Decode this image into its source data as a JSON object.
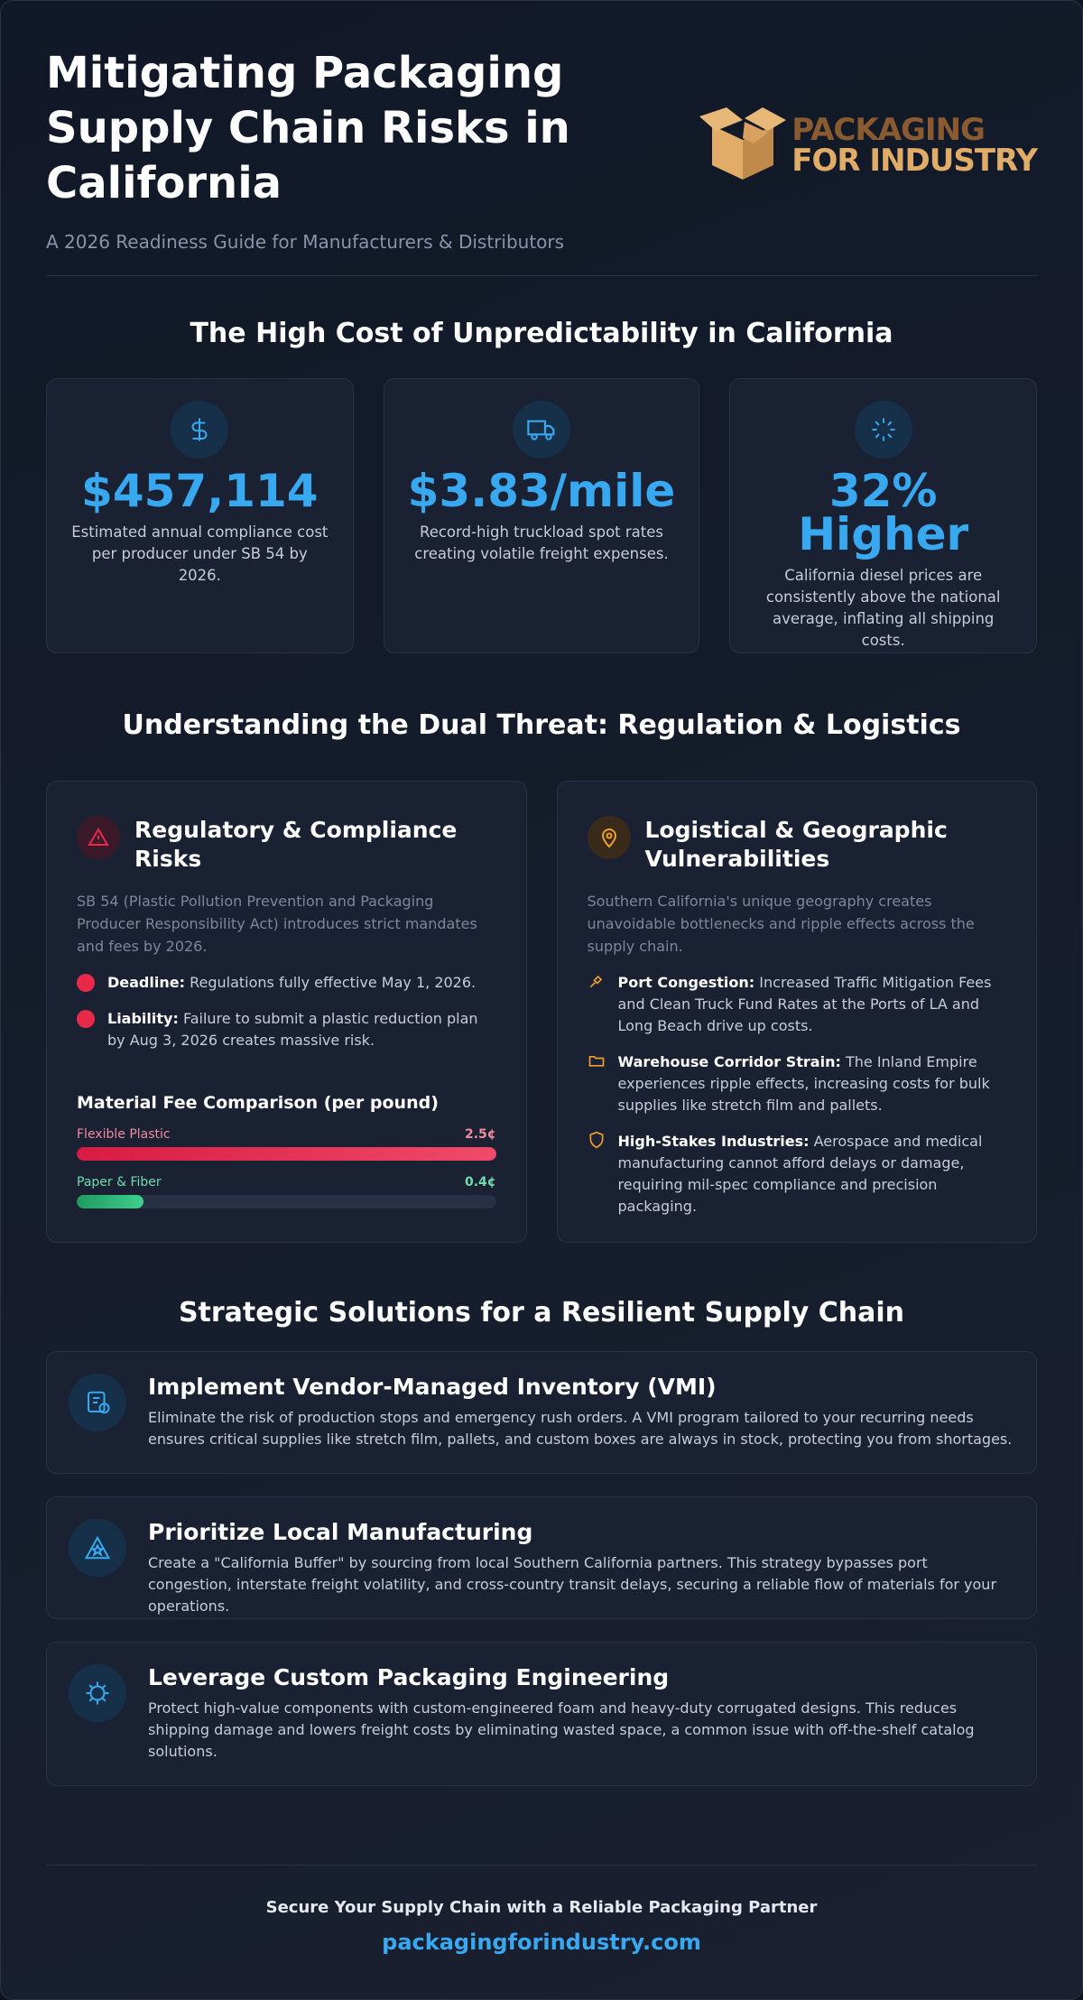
{
  "header": {
    "title": "Mitigating Packaging Supply Chain Risks in California",
    "subtitle": "A 2026 Readiness Guide for Manufacturers & Distributors",
    "logo": {
      "line1": "PACKAGING",
      "line2": "FOR INDUSTRY"
    }
  },
  "cost_section": {
    "heading": "The High Cost of Unpredictability in California",
    "stats": [
      {
        "value": "$457,114",
        "text": "Estimated annual compliance cost per producer under SB 54 by 2026."
      },
      {
        "value": "$3.83/mile",
        "text": "Record-high truckload spot rates creating volatile freight expenses."
      },
      {
        "value": "32% Higher",
        "text": "California diesel prices are consistently above the national average, inflating all shipping costs."
      }
    ]
  },
  "threat_section": {
    "heading": "Understanding the Dual Threat: Regulation & Logistics",
    "regulatory": {
      "title": "Regulatory & Compliance Risks",
      "intro": "SB 54 (Plastic Pollution Prevention and Packaging Producer Responsibility Act) introduces strict mandates and fees by 2026.",
      "items": [
        {
          "label": "Deadline:",
          "text": "Regulations fully effective May 1, 2026."
        },
        {
          "label": "Liability:",
          "text": "Failure to submit a plastic reduction plan by Aug 3, 2026 creates massive risk."
        }
      ],
      "fee_comparison": {
        "title": "Material Fee Comparison (per pound)",
        "items": [
          {
            "label": "Flexible Plastic",
            "value": 2.5,
            "value_label": "2.5¢"
          },
          {
            "label": "Paper & Fiber",
            "value": 0.4,
            "value_label": "0.4¢"
          }
        ]
      }
    },
    "logistical": {
      "title": "Logistical & Geographic Vulnerabilities",
      "intro": "Southern California's unique geography creates unavoidable bottlenecks and ripple effects across the supply chain.",
      "items": [
        {
          "label": "Port Congestion:",
          "text": "Increased Traffic Mitigation Fees and Clean Truck Fund Rates at the Ports of LA and Long Beach drive up costs."
        },
        {
          "label": "Warehouse Corridor Strain:",
          "text": "The Inland Empire experiences ripple effects, increasing costs for bulk supplies like stretch film and pallets."
        },
        {
          "label": "High-Stakes Industries:",
          "text": "Aerospace and medical manufacturing cannot afford delays or damage, requiring mil-spec compliance and precision packaging."
        }
      ]
    }
  },
  "solutions_section": {
    "heading": "Strategic Solutions for a Resilient Supply Chain",
    "items": [
      {
        "title": "Implement Vendor-Managed Inventory (VMI)",
        "text": "Eliminate the risk of production stops and emergency rush orders. A VMI program tailored to your recurring needs ensures critical supplies like stretch film, pallets, and custom boxes are always in stock, protecting you from shortages."
      },
      {
        "title": "Prioritize Local Manufacturing",
        "text": "Create a \"California Buffer\" by sourcing from local Southern California partners. This strategy bypasses port congestion, interstate freight volatility, and cross-country transit delays, securing a reliable flow of materials for your operations."
      },
      {
        "title": "Leverage Custom Packaging Engineering",
        "text": "Protect high-value components with custom-engineered foam and heavy-duty corrugated designs. This reduces shipping damage and lowers freight costs by eliminating wasted space, a common issue with off-the-shelf catalog solutions."
      }
    ]
  },
  "footer": {
    "tagline": "Secure Your Supply Chain with a Reliable Packaging Partner",
    "link": "packagingforindustry.com"
  }
}
